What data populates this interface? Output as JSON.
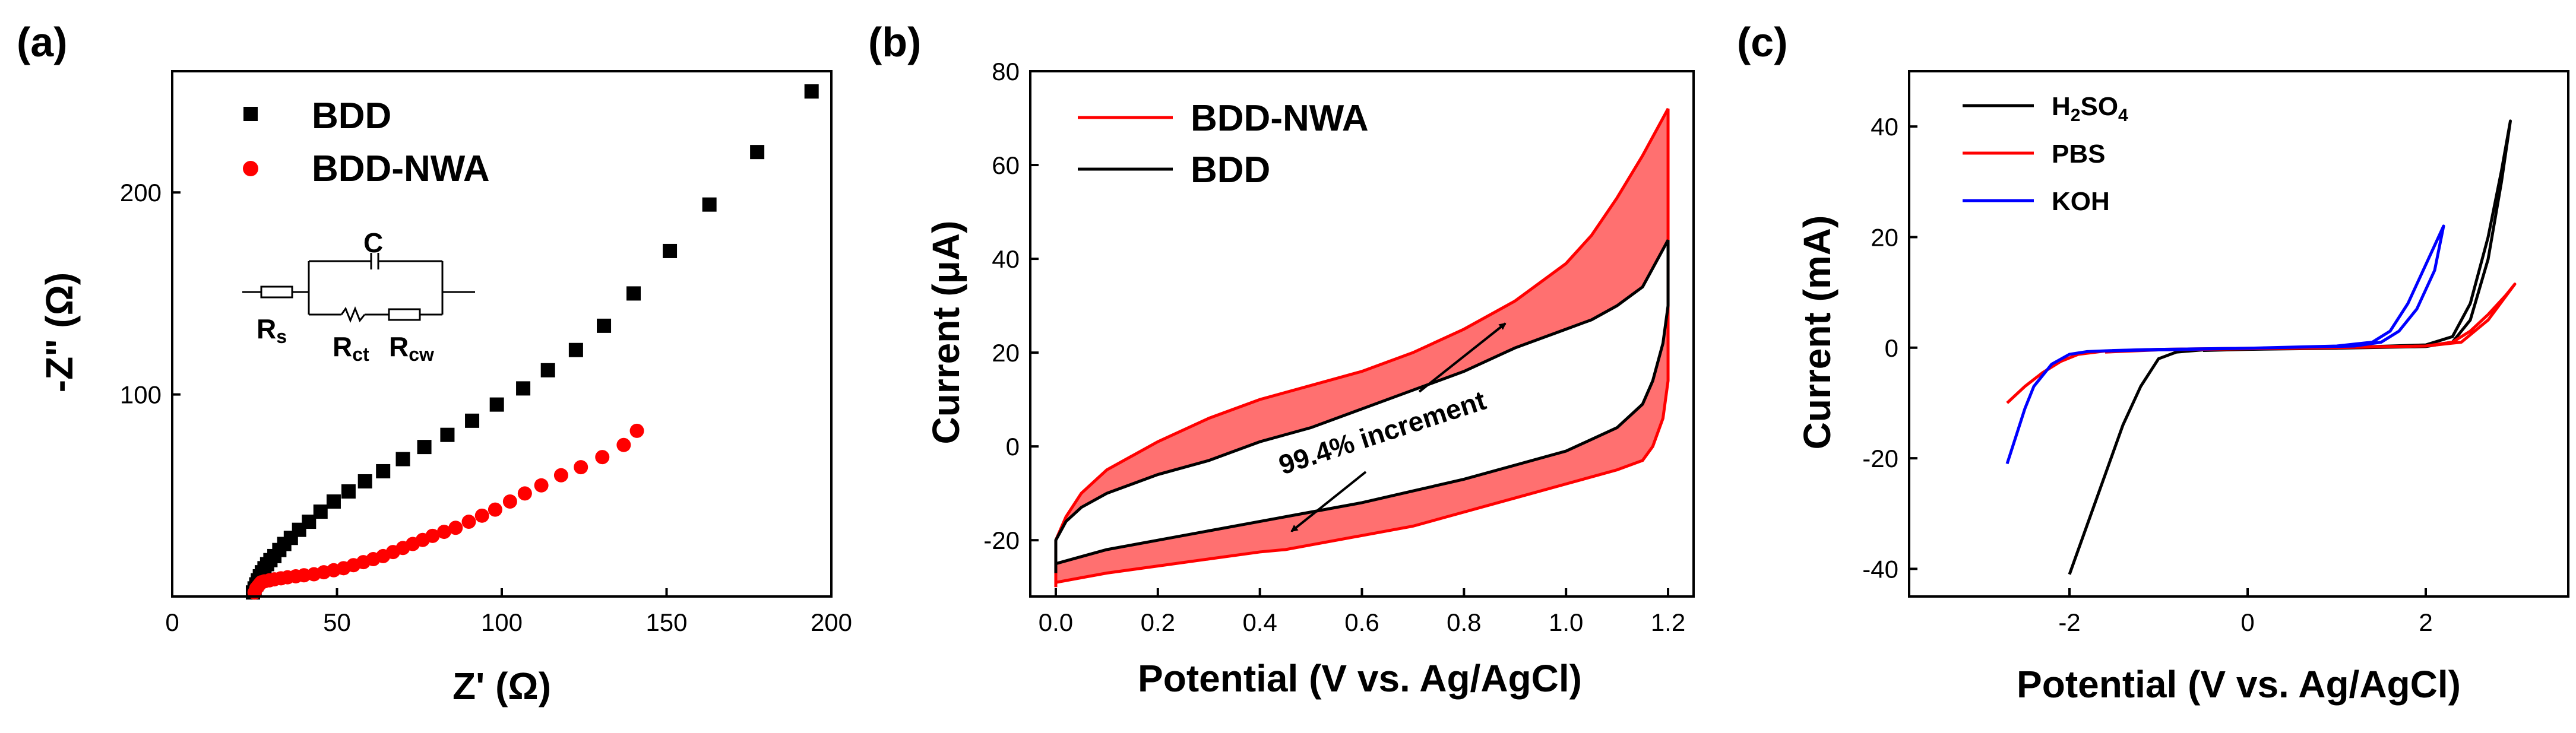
{
  "chart_data": [
    {
      "type": "scatter",
      "panel_label": "(a)",
      "xlabel": "Z' (Ω)",
      "ylabel": "-Z\" (Ω)",
      "xlim": [
        0,
        200
      ],
      "ylim": [
        0,
        260
      ],
      "xticks": [
        0,
        50,
        100,
        150,
        200
      ],
      "yticks": [
        100,
        200
      ],
      "inset": {
        "cap": "C",
        "r1": "R",
        "r1_sub": "s",
        "r2": "R",
        "r2_sub": "ct",
        "r3": "R",
        "r3_sub": "cw"
      },
      "series": [
        {
          "name": "BDD",
          "color": "#000000",
          "marker": "square",
          "x": [
            24.5,
            25,
            25.5,
            26,
            26.6,
            27.2,
            28,
            28.8,
            29.8,
            31,
            32.5,
            34,
            36,
            38.5,
            41.5,
            45,
            49,
            53.5,
            58.5,
            64,
            70,
            76.5,
            83.5,
            91,
            98.5,
            106.5,
            114,
            122.5,
            131,
            140,
            151,
            163,
            177.5,
            194
          ],
          "y": [
            2,
            4,
            6,
            8,
            10,
            12,
            14,
            16,
            18,
            20,
            23,
            26,
            29,
            33,
            37,
            42,
            47,
            52,
            57,
            62,
            68,
            74,
            80,
            87,
            95,
            103,
            112,
            122,
            134,
            150,
            171,
            194,
            220,
            250
          ]
        },
        {
          "name": "BDD-NWA",
          "color": "#ff0000",
          "marker": "circle",
          "x": [
            25,
            25.5,
            26,
            26.5,
            27,
            28,
            29.5,
            31,
            33,
            35,
            37.5,
            40,
            43,
            46,
            49,
            52,
            55,
            58,
            61,
            64,
            67,
            70,
            73,
            76,
            79,
            82.5,
            86,
            90,
            94,
            98,
            102.5,
            107,
            112,
            118,
            124,
            130.5,
            137,
            141
          ],
          "y": [
            2,
            4,
            5,
            6,
            7,
            7.5,
            8,
            8.5,
            9,
            9.5,
            10,
            10.5,
            11,
            12,
            13,
            14,
            15.5,
            17,
            18.5,
            20,
            22,
            24,
            26,
            28,
            30,
            32,
            34,
            37,
            40,
            43,
            47,
            51,
            55,
            60,
            64,
            69,
            75,
            82
          ]
        }
      ]
    },
    {
      "type": "line",
      "panel_label": "(b)",
      "xlabel": "Potential (V vs. Ag/AgCl)",
      "ylabel": "Current (μA)",
      "xlim": [
        -0.05,
        1.25
      ],
      "ylim": [
        -32,
        80
      ],
      "xticks": [
        0.0,
        0.2,
        0.4,
        0.6,
        0.8,
        1.0,
        1.2
      ],
      "xticklabels": [
        "0.0",
        "0.2",
        "0.4",
        "0.6",
        "0.8",
        "1.0",
        "1.2"
      ],
      "yticks": [
        -20,
        0,
        20,
        40,
        60,
        80
      ],
      "annotation": "99.4% increment",
      "series": [
        {
          "name": "BDD-NWA",
          "color": "#ff0000",
          "x": [
            0,
            0.0,
            0.02,
            0.05,
            0.1,
            0.2,
            0.3,
            0.4,
            0.5,
            0.6,
            0.7,
            0.8,
            0.9,
            1.0,
            1.05,
            1.1,
            1.15,
            1.2,
            1.2,
            1.19,
            1.17,
            1.15,
            1.1,
            1.0,
            0.9,
            0.8,
            0.7,
            0.6,
            0.5,
            0.45,
            0.4,
            0.3,
            0.2,
            0.1,
            0.05,
            0.0
          ],
          "y": [
            -30,
            -20,
            -15,
            -10,
            -5,
            1,
            6,
            10,
            13,
            16,
            20,
            25,
            31,
            39,
            45,
            53,
            62,
            72,
            14,
            6,
            0,
            -3,
            -5,
            -8,
            -11,
            -14,
            -17,
            -19,
            -21,
            -22,
            -22.5,
            -24,
            -25.5,
            -27,
            -28,
            -29
          ]
        },
        {
          "name": "BDD",
          "color": "#000000",
          "x": [
            0,
            0.0,
            0.02,
            0.05,
            0.1,
            0.2,
            0.3,
            0.4,
            0.5,
            0.6,
            0.7,
            0.8,
            0.9,
            1.0,
            1.05,
            1.1,
            1.15,
            1.2,
            1.2,
            1.19,
            1.17,
            1.15,
            1.1,
            1.0,
            0.9,
            0.8,
            0.7,
            0.6,
            0.5,
            0.4,
            0.3,
            0.2,
            0.1,
            0.05,
            0.0
          ],
          "y": [
            -27,
            -20,
            -16,
            -13,
            -10,
            -6,
            -3,
            1,
            4,
            8,
            12,
            16,
            21,
            25,
            27,
            30,
            34,
            44,
            30,
            22,
            14,
            9,
            4,
            -1,
            -4,
            -7,
            -9.5,
            -12,
            -14,
            -16,
            -18,
            -20,
            -22,
            -23.5,
            -25
          ]
        }
      ]
    },
    {
      "type": "line",
      "panel_label": "(c)",
      "xlabel": "Potential (V vs. Ag/AgCl)",
      "ylabel": "Current (mA)",
      "xlim": [
        -3.8,
        3.6
      ],
      "ylim": [
        -45,
        50
      ],
      "xticks": [
        -2,
        0,
        2
      ],
      "yticks": [
        -40,
        -20,
        0,
        20,
        40
      ],
      "series": [
        {
          "name": "H2SO4",
          "label_main": "H",
          "label_sub1": "2",
          "label_mid": "SO",
          "label_sub2": "4",
          "color": "#000000",
          "x": [
            -2.0,
            -1.8,
            -1.6,
            -1.4,
            -1.2,
            -1.0,
            -0.8,
            -0.5,
            0,
            1.0,
            2.0,
            2.3,
            2.5,
            2.7,
            2.85,
            2.95,
            2.85,
            2.7,
            2.5,
            2.3,
            2.0,
            1.0,
            0,
            -0.5
          ],
          "y": [
            -41,
            -32,
            -23,
            -14,
            -7,
            -2,
            -0.8,
            -0.4,
            -0.2,
            0,
            0.5,
            2,
            8,
            20,
            32,
            41,
            30,
            16,
            5,
            1,
            0.2,
            -0.1,
            -0.3,
            -0.5
          ]
        },
        {
          "name": "PBS",
          "color": "#ff0000",
          "x": [
            -2.7,
            -2.5,
            -2.3,
            -2.1,
            -1.9,
            -1.6,
            -1.0,
            0,
            1.0,
            2.0,
            2.3,
            2.5,
            2.7,
            2.9,
            3.0,
            2.7,
            2.4,
            2.0,
            1.0,
            0,
            -1.0,
            -1.6
          ],
          "y": [
            -10,
            -7,
            -4.5,
            -2.5,
            -1.2,
            -0.6,
            -0.3,
            -0.1,
            0.1,
            0.3,
            1,
            3,
            6,
            9.5,
            11.5,
            5,
            1,
            0.3,
            0,
            -0.2,
            -0.4,
            -0.8
          ]
        },
        {
          "name": "KOH",
          "color": "#0000ff",
          "x": [
            -2.7,
            -2.6,
            -2.5,
            -2.4,
            -2.2,
            -2.0,
            -1.8,
            -1.5,
            -1.0,
            0,
            1.0,
            1.4,
            1.6,
            1.8,
            2.0,
            2.2,
            2.1,
            1.9,
            1.7,
            1.5,
            1.2,
            0,
            -1.0,
            -1.6
          ],
          "y": [
            -21,
            -16,
            -11,
            -7,
            -3,
            -1.2,
            -0.7,
            -0.5,
            -0.3,
            -0.1,
            0.3,
            1,
            3,
            8,
            15,
            22,
            14,
            7,
            3,
            1,
            0.3,
            -0.1,
            -0.4,
            -0.6
          ]
        }
      ]
    }
  ]
}
